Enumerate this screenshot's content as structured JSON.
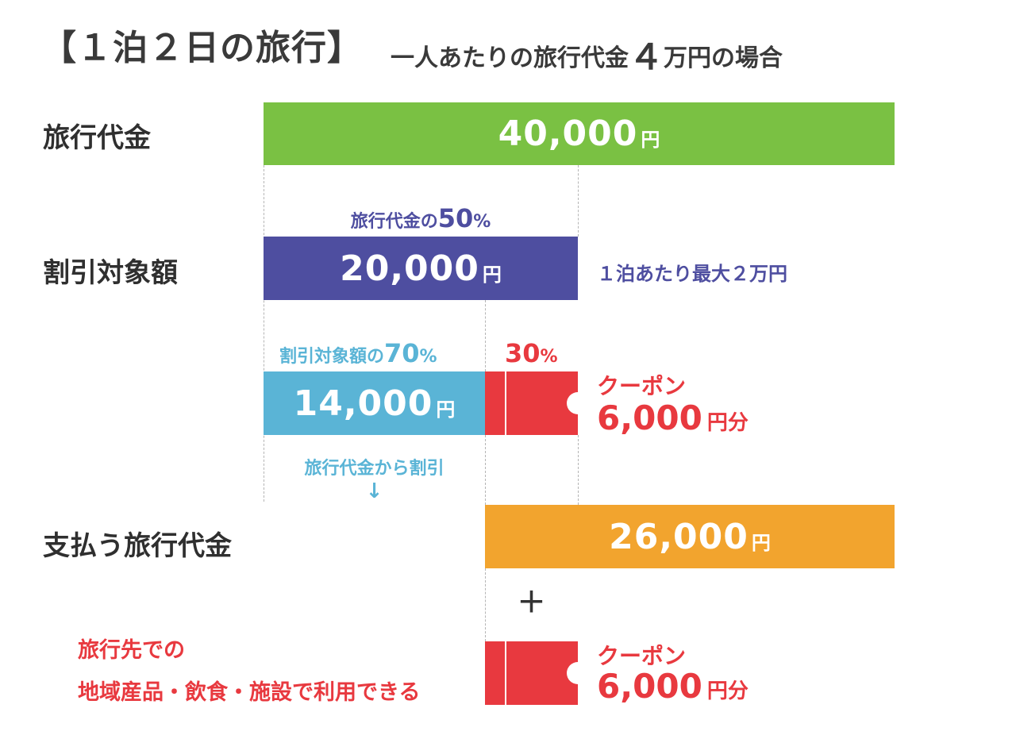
{
  "title": {
    "main": "【１泊２日の旅行】",
    "sub_prefix": "一人あたりの旅行代金",
    "sub_number": "４",
    "sub_suffix": "万円の場合"
  },
  "rows": {
    "travel_cost": {
      "label": "旅行代金",
      "value": "40,000",
      "unit": "円",
      "color": "#7ac143"
    },
    "discount_target": {
      "label": "割引対象額",
      "note_prefix": "旅行代金の",
      "note_number": "50",
      "note_unit": "%",
      "value": "20,000",
      "unit": "円",
      "color": "#4e4ea0",
      "side_note": "１泊あたり最大２万円"
    },
    "discount": {
      "note_prefix": "割引対象額の",
      "note_number": "70",
      "note_unit": "%",
      "value": "14,000",
      "unit": "円",
      "color": "#5ab4d6",
      "coupon_pct_number": "30",
      "coupon_pct_unit": "%",
      "below_note": "旅行代金から割引",
      "arrow": "↓"
    },
    "payment": {
      "label": "支払う旅行代金",
      "value": "26,000",
      "unit": "円",
      "color": "#f2a42e"
    }
  },
  "coupons": [
    {
      "title": "クーポン",
      "value": "6,000",
      "unit": "円分",
      "color": "#e8393f"
    },
    {
      "title": "クーポン",
      "value": "6,000",
      "unit": "円分",
      "color": "#e8393f"
    }
  ],
  "plus": "＋",
  "coupon_usage": {
    "line1": "旅行先での",
    "line2": "地域産品・飲食・施設で利用できる"
  }
}
